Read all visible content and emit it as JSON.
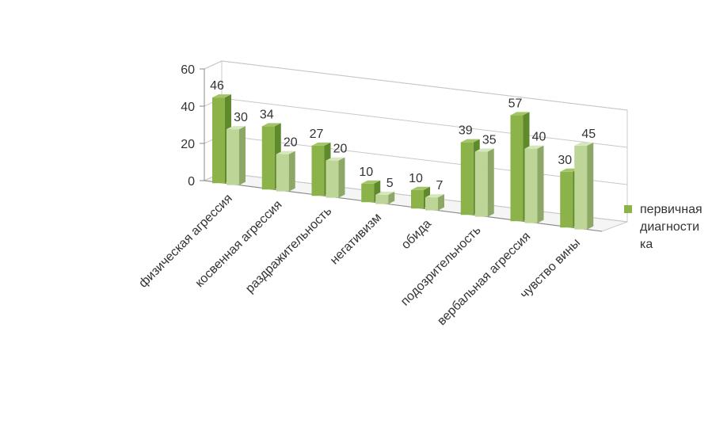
{
  "colors": {
    "primary": "#8cb34a",
    "primary_side": "#5f8a2c",
    "primary_top": "#a3c568",
    "secondary": "#bdd698",
    "secondary_side": "#8da866",
    "secondary_top": "#d6e7bc",
    "grid": "#c8c8c8",
    "text": "#333333"
  },
  "chart_data": {
    "type": "bar",
    "categories": [
      "физическая агрессия",
      "косвенная агрессия",
      "раздражительность",
      "негативизм",
      "обида",
      "подозрительность",
      "вербальная агрессия",
      "чувство вины"
    ],
    "series": [
      {
        "name": "первичная диагностика",
        "values": [
          46,
          34,
          27,
          10,
          10,
          39,
          57,
          30
        ]
      },
      {
        "values": [
          30,
          20,
          20,
          5,
          7,
          35,
          40,
          45
        ]
      }
    ],
    "y_ticks": [
      "0",
      "20",
      "40",
      "60"
    ],
    "ylim": [
      0,
      60
    ],
    "grid": true,
    "legend_position": "right"
  },
  "legend": {
    "label": "первичная диагности ка"
  }
}
